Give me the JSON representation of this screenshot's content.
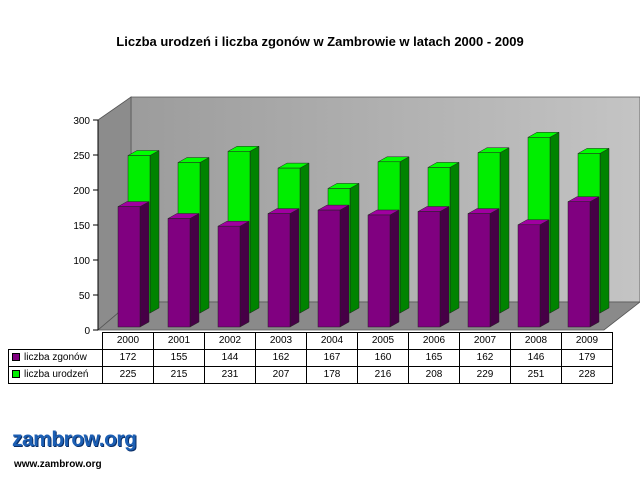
{
  "chart_data": {
    "type": "bar",
    "title": "Liczba urodzeń i liczba zgonów w Zambrowie w latach 2000 - 2009",
    "categories": [
      "2000",
      "2001",
      "2002",
      "2003",
      "2004",
      "2005",
      "2006",
      "2007",
      "2008",
      "2009"
    ],
    "series": [
      {
        "name": "liczba zgonów",
        "color": "#800080",
        "values": [
          172,
          155,
          144,
          162,
          167,
          160,
          165,
          162,
          146,
          179
        ]
      },
      {
        "name": "liczba urodzeń",
        "color": "#00ee00",
        "values": [
          225,
          215,
          231,
          207,
          178,
          216,
          208,
          229,
          251,
          228
        ]
      }
    ],
    "ylim": [
      0,
      300
    ],
    "yticks": [
      0,
      50,
      100,
      150,
      200,
      250,
      300
    ],
    "grid": false,
    "legend": "data-table",
    "three_d": true
  },
  "branding": {
    "logo_text": "zambrow.org",
    "url": "www.zambrow.org"
  }
}
